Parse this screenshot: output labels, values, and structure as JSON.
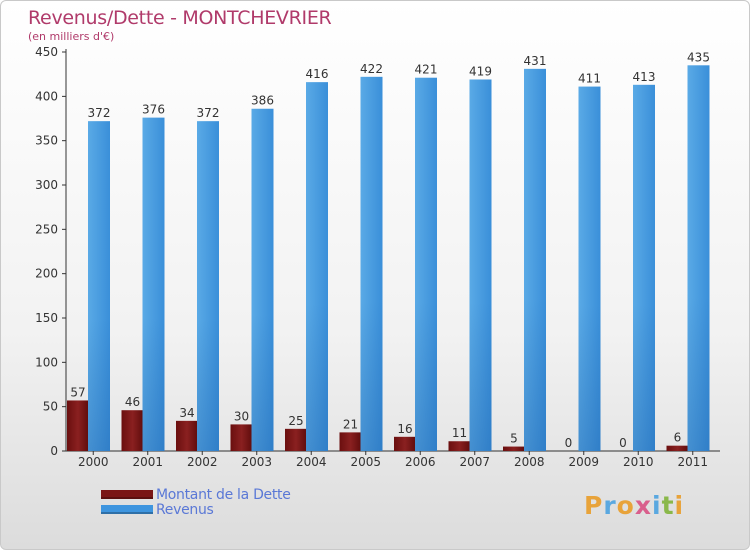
{
  "title": "Revenus/Dette - MONTCHEVRIER",
  "subtitle": "(en milliers d'€)",
  "colors": {
    "title": "#b03a6a",
    "dette": "#7a1515",
    "revenus": "#3e95df",
    "legend_text": "#5a78d6"
  },
  "chart_data": {
    "type": "bar",
    "title": "Revenus/Dette - MONTCHEVRIER",
    "subtitle": "(en milliers d'€)",
    "categories": [
      "2000",
      "2001",
      "2002",
      "2003",
      "2004",
      "2005",
      "2006",
      "2007",
      "2008",
      "2009",
      "2010",
      "2011"
    ],
    "series": [
      {
        "name": "Montant de la Dette",
        "color": "#7a1515",
        "values": [
          57,
          46,
          34,
          30,
          25,
          21,
          16,
          11,
          5,
          0,
          0,
          6
        ]
      },
      {
        "name": "Revenus",
        "color": "#3e95df",
        "values": [
          372,
          376,
          372,
          386,
          416,
          422,
          421,
          419,
          431,
          411,
          413,
          435
        ]
      }
    ],
    "ylim": [
      0,
      450
    ],
    "yticks": [
      0,
      50,
      100,
      150,
      200,
      250,
      300,
      350,
      400,
      450
    ],
    "grid": false,
    "legend_position": "bottom-left",
    "data_labels": true
  },
  "legend": [
    {
      "label": "Montant de la Dette",
      "color": "#7a1515"
    },
    {
      "label": "Revenus",
      "color": "#3e95df"
    }
  ],
  "logo": {
    "letters": [
      "P",
      "r",
      "o",
      "x",
      "i",
      "t",
      "i"
    ],
    "colors": [
      "#e8a33a",
      "#5aa8e0",
      "#e8a33a",
      "#d95f8c",
      "#5aa8e0",
      "#8ab84a",
      "#e8a33a"
    ]
  }
}
